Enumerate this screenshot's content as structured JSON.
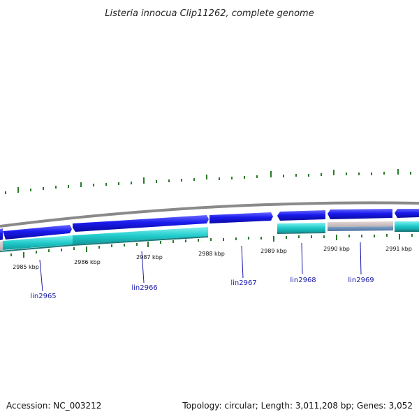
{
  "title": "Listeria innocua Clip11262, complete genome",
  "footer": {
    "accession": "Accession: NC_003212",
    "summary": "Topology: circular; Length: 3,011,208 bp; Genes: 3,052"
  },
  "kbp_labels": [
    "2985 kbp",
    "2986 kbp",
    "2987 kbp",
    "2988 kbp",
    "2989 kbp",
    "2990 kbp",
    "2991 kbp"
  ],
  "gene_labels": [
    "lin2965",
    "lin2966",
    "lin2967",
    "lin2968",
    "lin2969"
  ],
  "colors": {
    "forward_cds": "#1a1aee",
    "reverse_cds": "#22cccc",
    "backbone": "#8a8a8a",
    "ticks": "#2a7a2a",
    "label_text": "#1a1aa8"
  }
}
